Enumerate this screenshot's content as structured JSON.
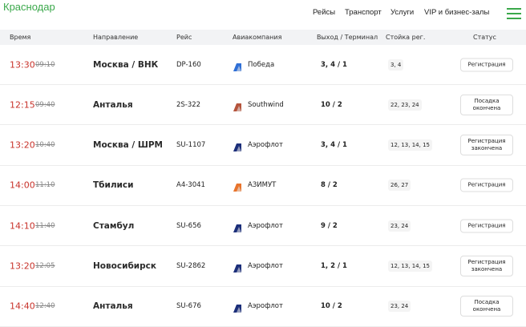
{
  "header": {
    "logo": "Краснодар",
    "nav": [
      "Рейсы",
      "Транспорт",
      "Услуги",
      "VIP и бизнес-залы"
    ]
  },
  "table": {
    "columns": [
      "Время",
      "Направление",
      "Рейс",
      "Авиакомпания",
      "Выход / Терминал",
      "Стойка рег.",
      "Статус"
    ],
    "rows": [
      {
        "time": "13:30",
        "scheduled": "09:10",
        "destination": "Москва / ВНК",
        "flight": "DP-160",
        "airline": "Победа",
        "logo_color": "#2f6fd6",
        "gate": "3, 4 / 1",
        "counters": "3, 4",
        "status": "Регистрация"
      },
      {
        "time": "12:15",
        "scheduled": "09:40",
        "destination": "Анталья",
        "flight": "2S-322",
        "airline": "Southwind",
        "logo_color": "#b5543c",
        "gate": "10 / 2",
        "counters": "22, 23, 24",
        "status": "Посадка окончена"
      },
      {
        "time": "13:20",
        "scheduled": "10:40",
        "destination": "Москва / ШРМ",
        "flight": "SU-1107",
        "airline": "Аэрофлот",
        "logo_color": "#1c2f7a",
        "gate": "3, 4 / 1",
        "counters": "12, 13, 14, 15",
        "status": "Регистрация закончена"
      },
      {
        "time": "14:00",
        "scheduled": "11:10",
        "destination": "Тбилиси",
        "flight": "A4-3041",
        "airline": "АЗИМУТ",
        "logo_color": "#e8742c",
        "gate": "8 / 2",
        "counters": "26, 27",
        "status": "Регистрация"
      },
      {
        "time": "14:10",
        "scheduled": "11:40",
        "destination": "Стамбул",
        "flight": "SU-656",
        "airline": "Аэрофлот",
        "logo_color": "#1c2f7a",
        "gate": "9 / 2",
        "counters": "23, 24",
        "status": "Регистрация"
      },
      {
        "time": "13:20",
        "scheduled": "12:05",
        "destination": "Новосибирск",
        "flight": "SU-2862",
        "airline": "Аэрофлот",
        "logo_color": "#1c2f7a",
        "gate": "1, 2 / 1",
        "counters": "12, 13, 14, 15",
        "status": "Регистрация закончена"
      },
      {
        "time": "14:40",
        "scheduled": "12:40",
        "destination": "Анталья",
        "flight": "SU-676",
        "airline": "Аэрофлот",
        "logo_color": "#1c2f7a",
        "gate": "10 / 2",
        "counters": "23, 24",
        "status": "Посадка окончена"
      }
    ]
  }
}
